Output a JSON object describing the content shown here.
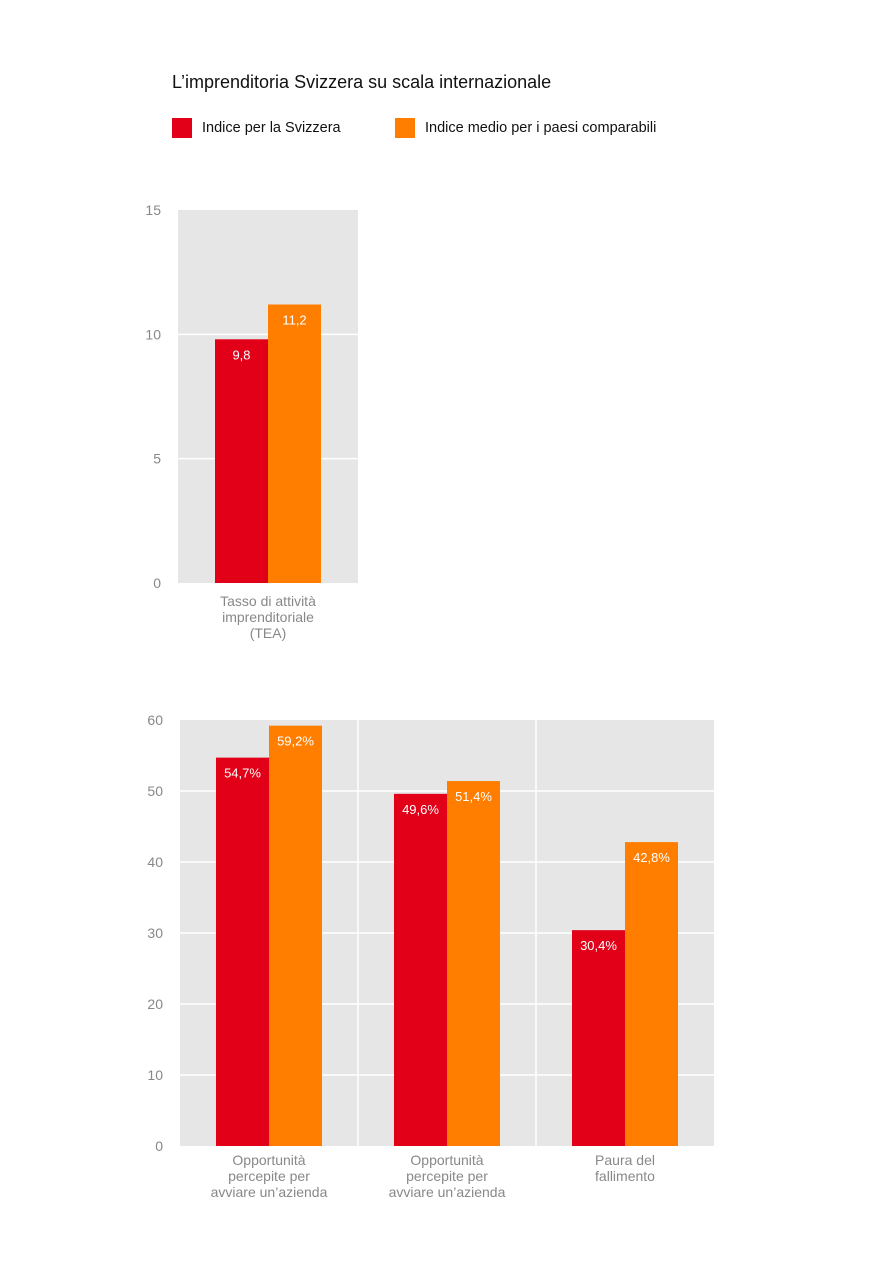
{
  "title": "L’imprenditoria Svizzera su scala internazionale",
  "colors": {
    "series1": "#e10017",
    "series2": "#ff7e00",
    "panel": "#e6e6e6",
    "grid": "#ffffff",
    "axis_text": "#888888"
  },
  "legend": [
    {
      "label": "Indice per la Svizzera",
      "color": "#e10017"
    },
    {
      "label": "Indice medio per i paesi comparabili",
      "color": "#ff7e00"
    }
  ],
  "chart_data": [
    {
      "type": "bar",
      "categories": [
        [
          "Tasso di attività",
          "imprenditoriale",
          "(TEA)"
        ]
      ],
      "series": [
        {
          "name": "Indice per la Svizzera",
          "values": [
            9.8
          ],
          "labels": [
            "9,8"
          ]
        },
        {
          "name": "Indice medio per i paesi comparabili",
          "values": [
            11.2
          ],
          "labels": [
            "11,2"
          ]
        }
      ],
      "ylim": [
        0,
        15
      ],
      "yticks": [
        0,
        5,
        10,
        15
      ],
      "grid": true
    },
    {
      "type": "bar",
      "categories": [
        [
          "Opportunità",
          "percepite per",
          "avviare un’azienda"
        ],
        [
          "Opportunità",
          "percepite per",
          "avviare un’azienda"
        ],
        [
          "Paura del",
          "fallimento"
        ]
      ],
      "series": [
        {
          "name": "Indice per la Svizzera",
          "values": [
            54.7,
            49.6,
            30.4
          ],
          "labels": [
            "54,7%",
            "49,6%",
            "30,4%"
          ]
        },
        {
          "name": "Indice medio per i paesi comparabili",
          "values": [
            59.2,
            51.4,
            42.8
          ],
          "labels": [
            "59,2%",
            "51,4%",
            "42,8%"
          ]
        }
      ],
      "ylim": [
        0,
        60
      ],
      "yticks": [
        0,
        10,
        20,
        30,
        40,
        50,
        60
      ],
      "grid": true
    }
  ]
}
